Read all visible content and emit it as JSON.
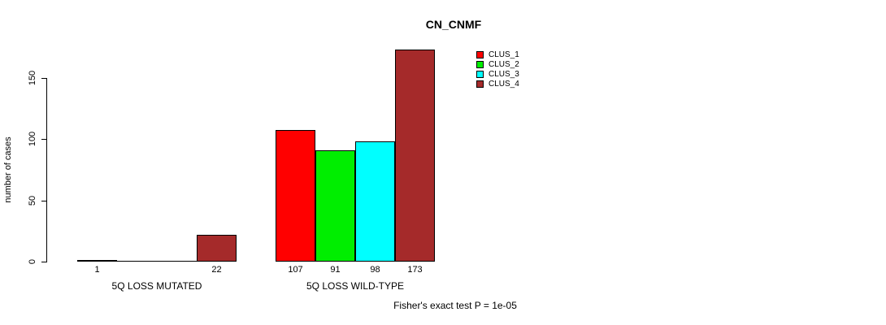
{
  "chart_data": {
    "type": "bar",
    "title": "CN_CNMF",
    "ylabel": "number of cases",
    "xlabel": "",
    "ylim": [
      0,
      175
    ],
    "yticks": [
      {
        "value": 0,
        "label": "0"
      },
      {
        "value": 50,
        "label": "50"
      },
      {
        "value": 100,
        "label": "100"
      },
      {
        "value": 150,
        "label": "150"
      }
    ],
    "grid": false,
    "legend_position": "top-right",
    "legend": [
      {
        "label": "CLUS_1",
        "color": "#FF0000"
      },
      {
        "label": "CLUS_2",
        "color": "#00EE00"
      },
      {
        "label": "CLUS_3",
        "color": "#00FFFF"
      },
      {
        "label": "CLUS_4",
        "color": "#A52A2A"
      }
    ],
    "groups": [
      {
        "label": "5Q LOSS MUTATED",
        "values": [
          1,
          0,
          0,
          22
        ],
        "bar_labels": [
          "1",
          "",
          "",
          "22"
        ]
      },
      {
        "label": "5Q LOSS WILD-TYPE",
        "values": [
          107,
          91,
          98,
          173
        ],
        "bar_labels": [
          "107",
          "91",
          "98",
          "173"
        ]
      }
    ],
    "annotation": "Fisher's exact test P = 1e-05",
    "colors_meaning": "bar fill matches cluster legend order",
    "accent_colors": {
      "bar_border": "#000000",
      "text": "#000000",
      "background": "#FFFFFF"
    }
  }
}
